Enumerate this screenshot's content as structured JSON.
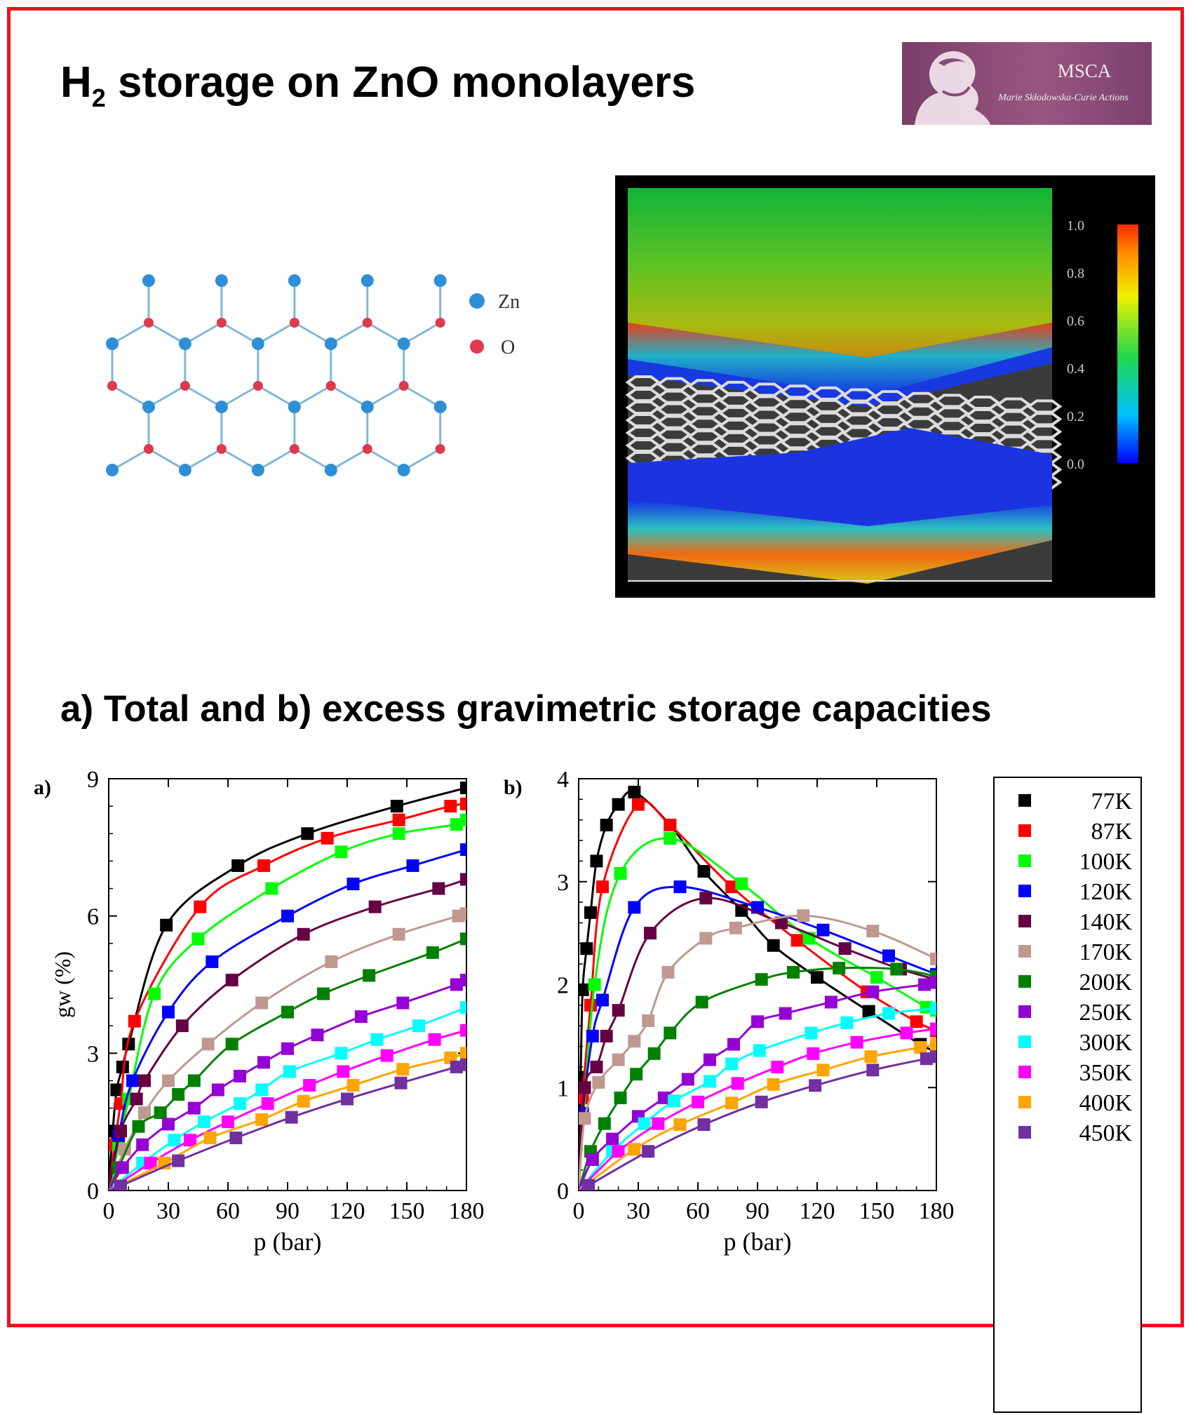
{
  "title": {
    "main": "H",
    "sub": "2",
    "rest": " storage on ZnO monolayers"
  },
  "subtitle": "a) Total and b) excess gravimetric storage capacities",
  "logo": {
    "title": "MSCA",
    "subtitle": "Marie Skłodowska-Curie Actions"
  },
  "lattice_legend": [
    {
      "label": "Zn",
      "color": "#2e8fd6"
    },
    {
      "label": "O",
      "color": "#e0384d"
    }
  ],
  "colorbar": {
    "ticks": [
      "1.0",
      "0.8",
      "0.6",
      "0.4",
      "0.2",
      "0.0"
    ]
  },
  "chart_data": [
    {
      "type": "line",
      "panel_label": "a)",
      "xlabel": "p (bar)",
      "ylabel": "gw (%)",
      "xlim": [
        0,
        180
      ],
      "ylim": [
        0,
        9
      ],
      "xticks": [
        "0",
        "30",
        "60",
        "90",
        "120",
        "150",
        "180"
      ],
      "yticks": [
        "0",
        "3",
        "6",
        "9"
      ],
      "series": [
        {
          "name": "77K",
          "color": "#000000",
          "x": [
            0,
            2,
            4,
            7,
            10,
            29,
            65,
            100,
            145,
            180
          ],
          "y": [
            0,
            1.3,
            2.2,
            2.7,
            3.2,
            5.8,
            7.1,
            7.8,
            8.4,
            8.8
          ]
        },
        {
          "name": "87K",
          "color": "#ff0000",
          "x": [
            0,
            3,
            6,
            13,
            46,
            78,
            110,
            146,
            172,
            180
          ],
          "y": [
            0,
            1.0,
            1.9,
            3.7,
            6.2,
            7.1,
            7.7,
            8.1,
            8.4,
            8.45
          ]
        },
        {
          "name": "100K",
          "color": "#00ff00",
          "x": [
            0,
            5,
            10,
            23,
            45,
            82,
            117,
            146,
            175,
            180
          ],
          "y": [
            0,
            1.0,
            2.0,
            4.3,
            5.5,
            6.6,
            7.4,
            7.8,
            8.0,
            8.1
          ]
        },
        {
          "name": "120K",
          "color": "#0000ff",
          "x": [
            0,
            5,
            12,
            30,
            52,
            90,
            123,
            153,
            180
          ],
          "y": [
            0,
            1.2,
            2.4,
            3.9,
            5.0,
            6.0,
            6.7,
            7.1,
            7.45
          ]
        },
        {
          "name": "140K",
          "color": "#660044",
          "x": [
            0,
            6,
            14,
            18,
            37,
            62,
            98,
            134,
            166,
            180
          ],
          "y": [
            0,
            1.3,
            2.0,
            2.4,
            3.6,
            4.6,
            5.6,
            6.2,
            6.6,
            6.8
          ]
        },
        {
          "name": "170K",
          "color": "#c09890",
          "x": [
            0,
            8,
            18,
            30,
            50,
            77,
            112,
            146,
            176,
            180
          ],
          "y": [
            0,
            0.9,
            1.7,
            2.4,
            3.2,
            4.1,
            5.0,
            5.6,
            6.0,
            6.05
          ]
        },
        {
          "name": "200K",
          "color": "#008000",
          "x": [
            0,
            5,
            15,
            26,
            35,
            43,
            62,
            90,
            108,
            131,
            163,
            180
          ],
          "y": [
            0,
            0.5,
            1.4,
            1.7,
            2.1,
            2.4,
            3.2,
            3.9,
            4.3,
            4.7,
            5.2,
            5.5
          ]
        },
        {
          "name": "250K",
          "color": "#9400d3",
          "x": [
            0,
            7,
            17,
            30,
            43,
            55,
            66,
            78,
            90,
            105,
            127,
            148,
            175,
            180
          ],
          "y": [
            0,
            0.5,
            1.0,
            1.45,
            1.8,
            2.2,
            2.5,
            2.8,
            3.1,
            3.4,
            3.8,
            4.1,
            4.5,
            4.6
          ]
        },
        {
          "name": "300K",
          "color": "#00ffff",
          "x": [
            0,
            17,
            33,
            48,
            66,
            77,
            91,
            117,
            135,
            156,
            180
          ],
          "y": [
            0,
            0.6,
            1.1,
            1.5,
            1.9,
            2.2,
            2.6,
            3.0,
            3.3,
            3.6,
            4.0
          ]
        },
        {
          "name": "350K",
          "color": "#ff00ff",
          "x": [
            0,
            21,
            41,
            60,
            80,
            101,
            118,
            140,
            164,
            180
          ],
          "y": [
            0,
            0.6,
            1.1,
            1.5,
            1.9,
            2.3,
            2.6,
            2.95,
            3.3,
            3.5
          ]
        },
        {
          "name": "400K",
          "color": "#ffa500",
          "x": [
            0,
            28,
            51,
            77,
            98,
            123,
            148,
            172,
            180
          ],
          "y": [
            0,
            0.6,
            1.15,
            1.55,
            1.95,
            2.3,
            2.65,
            2.9,
            3.0
          ]
        },
        {
          "name": "450K",
          "color": "#7030a0",
          "x": [
            0,
            6,
            35,
            64,
            92,
            120,
            147,
            175,
            180
          ],
          "y": [
            0,
            0.1,
            0.65,
            1.15,
            1.6,
            2.0,
            2.35,
            2.7,
            2.75
          ]
        }
      ]
    },
    {
      "type": "line",
      "panel_label": "b)",
      "xlabel": "p (bar)",
      "ylabel": "",
      "xlim": [
        0,
        180
      ],
      "ylim": [
        0,
        4
      ],
      "xticks": [
        "0",
        "30",
        "60",
        "90",
        "120",
        "150",
        "180"
      ],
      "yticks": [
        "0",
        "1",
        "2",
        "3",
        "4"
      ],
      "series": [
        {
          "name": "77K",
          "color": "#000000",
          "x": [
            0,
            1,
            2,
            4,
            6,
            9,
            14,
            20,
            28,
            46,
            63,
            82,
            98,
            120,
            146,
            172,
            180
          ],
          "y": [
            0,
            1.1,
            1.95,
            2.35,
            2.7,
            3.2,
            3.55,
            3.75,
            3.87,
            3.55,
            3.1,
            2.72,
            2.38,
            2.07,
            1.74,
            1.42,
            1.35
          ]
        },
        {
          "name": "87K",
          "color": "#ff0000",
          "x": [
            0,
            2,
            6,
            12,
            30,
            46,
            77,
            110,
            145,
            170,
            180
          ],
          "y": [
            0,
            0.9,
            1.8,
            2.95,
            3.75,
            3.55,
            2.95,
            2.43,
            1.93,
            1.64,
            1.55
          ]
        },
        {
          "name": "100K",
          "color": "#00ff00",
          "x": [
            0,
            8,
            21,
            46,
            82,
            116,
            150,
            175,
            180
          ],
          "y": [
            0,
            2.0,
            3.08,
            3.42,
            2.98,
            2.45,
            2.07,
            1.78,
            1.75
          ]
        },
        {
          "name": "120K",
          "color": "#0000ff",
          "x": [
            0,
            2,
            7,
            12,
            28,
            51,
            90,
            123,
            156,
            180
          ],
          "y": [
            0,
            0.75,
            1.5,
            1.85,
            2.75,
            2.95,
            2.75,
            2.53,
            2.28,
            2.1
          ]
        },
        {
          "name": "140K",
          "color": "#660044",
          "x": [
            0,
            3,
            9,
            14,
            20,
            36,
            64,
            102,
            134,
            162,
            180
          ],
          "y": [
            0,
            1.0,
            1.2,
            1.5,
            1.75,
            2.5,
            2.84,
            2.6,
            2.35,
            2.15,
            2.05
          ]
        },
        {
          "name": "170K",
          "color": "#c09890",
          "x": [
            0,
            3,
            10,
            20,
            28,
            35,
            45,
            64,
            79,
            113,
            148,
            180
          ],
          "y": [
            0,
            0.7,
            1.05,
            1.27,
            1.45,
            1.65,
            2.12,
            2.45,
            2.55,
            2.67,
            2.52,
            2.25
          ]
        },
        {
          "name": "200K",
          "color": "#008000",
          "x": [
            0,
            6,
            13,
            21,
            29,
            38,
            46,
            62,
            92,
            108,
            131,
            160,
            180
          ],
          "y": [
            0,
            0.38,
            0.65,
            0.9,
            1.13,
            1.33,
            1.53,
            1.83,
            2.05,
            2.12,
            2.16,
            2.15,
            2.08
          ]
        },
        {
          "name": "250K",
          "color": "#9400d3",
          "x": [
            0,
            7,
            17,
            30,
            43,
            55,
            66,
            78,
            90,
            104,
            127,
            148,
            174,
            180
          ],
          "y": [
            0,
            0.3,
            0.5,
            0.72,
            0.9,
            1.08,
            1.27,
            1.42,
            1.64,
            1.72,
            1.83,
            1.93,
            2.0,
            2.02
          ]
        },
        {
          "name": "300K",
          "color": "#00ffff",
          "x": [
            0,
            17,
            33,
            48,
            66,
            77,
            91,
            117,
            135,
            156,
            180
          ],
          "y": [
            0,
            0.38,
            0.65,
            0.87,
            1.06,
            1.23,
            1.36,
            1.53,
            1.63,
            1.72,
            1.77
          ]
        },
        {
          "name": "350K",
          "color": "#ff00ff",
          "x": [
            0,
            20,
            40,
            60,
            80,
            100,
            118,
            140,
            165,
            180
          ],
          "y": [
            0,
            0.38,
            0.65,
            0.86,
            1.04,
            1.2,
            1.33,
            1.44,
            1.53,
            1.57
          ]
        },
        {
          "name": "400K",
          "color": "#ffa500",
          "x": [
            0,
            28,
            51,
            77,
            98,
            123,
            147,
            172,
            180
          ],
          "y": [
            0,
            0.4,
            0.64,
            0.85,
            1.03,
            1.17,
            1.3,
            1.39,
            1.42
          ]
        },
        {
          "name": "450K",
          "color": "#7030a0",
          "x": [
            0,
            5,
            35,
            63,
            92,
            119,
            148,
            175,
            180
          ],
          "y": [
            0,
            0.05,
            0.38,
            0.64,
            0.86,
            1.02,
            1.17,
            1.28,
            1.3
          ]
        }
      ]
    }
  ]
}
